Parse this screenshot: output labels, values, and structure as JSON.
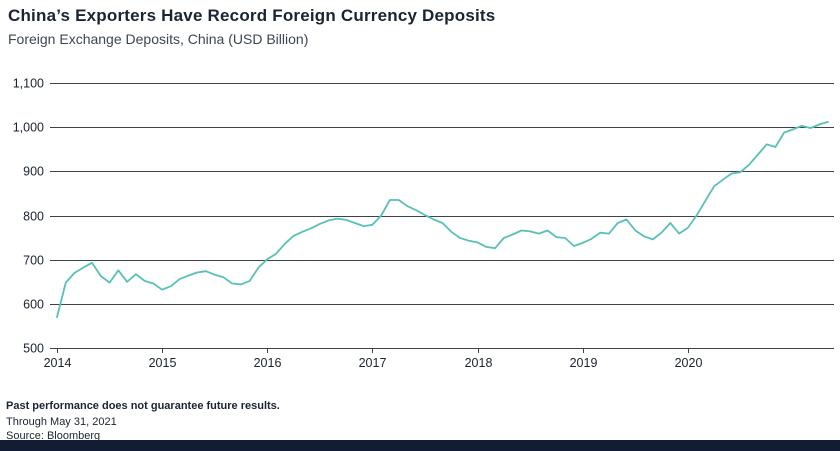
{
  "footer": {
    "disclaimer": "Past performance does not guarantee future results.",
    "through": "Through May 31, 2021",
    "source": "Source: Bloomberg"
  },
  "chart_data": {
    "type": "line",
    "title": "China’s Exporters Have Record Foreign Currency Deposits",
    "subtitle": "Foreign Exchange Deposits, China (USD Billion)",
    "xlabel": "",
    "ylabel": "USD Billion",
    "ylim": [
      500,
      1100
    ],
    "y_step": 100,
    "grid": true,
    "legend": "none",
    "x_ticks": [
      2014,
      2015,
      2016,
      2017,
      2018,
      2019,
      2020
    ],
    "line_color": "#57c1b8",
    "series": [
      {
        "name": "Foreign Exchange Deposits, China (USD Billion)",
        "color": "#57c1b8",
        "frequency": "monthly",
        "start_year": 2014,
        "end_label": "May 2021",
        "values": [
          570,
          648,
          670,
          682,
          693,
          663,
          648,
          676,
          650,
          667,
          652,
          646,
          632,
          640,
          656,
          664,
          671,
          674,
          666,
          660,
          646,
          644,
          652,
          682,
          701,
          713,
          736,
          754,
          763,
          771,
          781,
          789,
          793,
          790,
          783,
          776,
          779,
          800,
          835,
          835,
          821,
          812,
          801,
          791,
          783,
          763,
          749,
          743,
          739,
          729,
          726,
          749,
          757,
          766,
          764,
          759,
          766,
          751,
          749,
          731,
          738,
          747,
          761,
          759,
          783,
          791,
          766,
          753,
          746,
          761,
          783,
          759,
          772,
          800,
          833,
          866,
          881,
          895,
          898,
          915,
          938,
          961,
          955,
          988,
          995,
          1003,
          998,
          1006,
          1012
        ]
      }
    ]
  }
}
